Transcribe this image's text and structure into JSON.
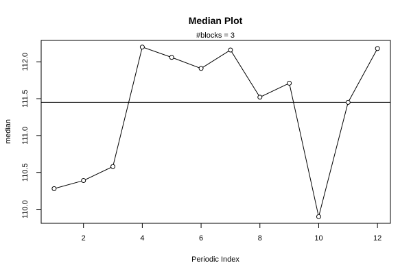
{
  "chart_data": {
    "type": "line",
    "title": "Median Plot",
    "subtitle": "#blocks =  3",
    "xlabel": "Periodic Index",
    "ylabel": "median",
    "x": [
      1,
      2,
      3,
      4,
      5,
      6,
      7,
      8,
      9,
      10,
      11,
      12
    ],
    "series": [
      {
        "values": [
          110.28,
          110.39,
          110.58,
          112.2,
          112.06,
          111.91,
          112.16,
          111.52,
          111.71,
          109.9,
          111.45,
          112.18
        ]
      }
    ],
    "reference_line": 111.45,
    "xlim": [
      0.56,
      12.44
    ],
    "ylim": [
      109.81,
      112.29
    ],
    "x_ticks": [
      2,
      4,
      6,
      8,
      10,
      12
    ],
    "y_ticks": [
      110.0,
      110.5,
      111.0,
      111.5,
      112.0
    ],
    "y_tick_labels": [
      "110.0",
      "110.5",
      "111.0",
      "111.5",
      "112.0"
    ],
    "markers": "open-circle",
    "grid": false
  }
}
